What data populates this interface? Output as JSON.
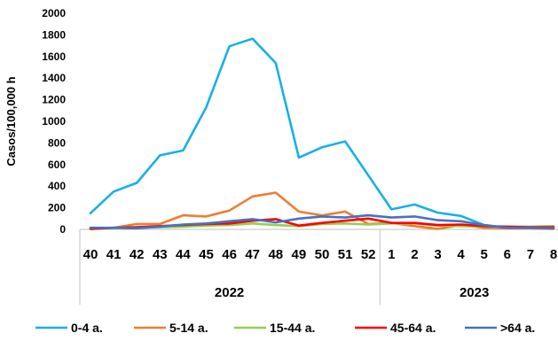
{
  "chart_data": {
    "type": "line",
    "title": "",
    "xlabel": "",
    "ylabel": "Casos/100,000 h",
    "ylim": [
      0,
      2000
    ],
    "yticks": [
      0,
      200,
      400,
      600,
      800,
      1000,
      1200,
      1400,
      1600,
      1800,
      2000
    ],
    "grid": false,
    "legend_position": "bottom",
    "categories": [
      "40",
      "41",
      "42",
      "43",
      "44",
      "45",
      "46",
      "47",
      "48",
      "49",
      "50",
      "51",
      "52",
      "1",
      "2",
      "3",
      "4",
      "5",
      "6",
      "7",
      "8"
    ],
    "groups": [
      {
        "label": "2022",
        "start": 0,
        "end": 12
      },
      {
        "label": "2023",
        "start": 13,
        "end": 20
      }
    ],
    "series": [
      {
        "name": "0-4 a.",
        "color": "#17b0e8",
        "values": [
          150,
          350,
          430,
          685,
          730,
          1130,
          1695,
          1765,
          1540,
          665,
          760,
          815,
          500,
          185,
          230,
          155,
          125,
          40,
          15,
          20,
          10
        ]
      },
      {
        "name": "5-14 a.",
        "color": "#ed7d31",
        "values": [
          5,
          15,
          50,
          50,
          130,
          120,
          175,
          305,
          340,
          165,
          130,
          165,
          50,
          60,
          30,
          5,
          40,
          15,
          10,
          10,
          5
        ]
      },
      {
        "name": "15-44 a.",
        "color": "#92d050",
        "values": [
          5,
          10,
          20,
          20,
          25,
          35,
          40,
          55,
          40,
          30,
          50,
          55,
          45,
          55,
          55,
          35,
          30,
          25,
          25,
          25,
          30
        ]
      },
      {
        "name": "45-64 a.",
        "color": "#ff0000",
        "values": [
          5,
          15,
          20,
          30,
          40,
          50,
          55,
          80,
          95,
          35,
          60,
          80,
          100,
          60,
          60,
          40,
          45,
          30,
          25,
          20,
          20
        ]
      },
      {
        "name": ">64 a.",
        "color": "#4472c4",
        "values": [
          15,
          15,
          10,
          25,
          45,
          55,
          75,
          95,
          65,
          100,
          120,
          110,
          130,
          110,
          120,
          85,
          75,
          40,
          15,
          15,
          10
        ]
      }
    ]
  }
}
